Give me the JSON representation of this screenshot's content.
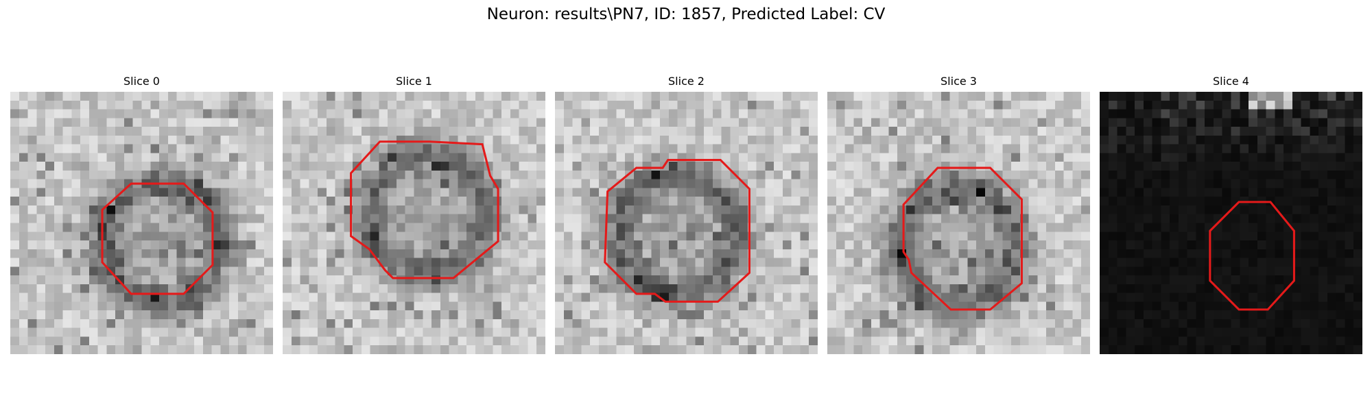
{
  "figure": {
    "title": "Neuron: results\\PN7, ID: 1857, Predicted Label: CV"
  },
  "slices": [
    {
      "title": "Slice 0",
      "tone": "light",
      "outline": [
        [
          0.46,
          0.35
        ],
        [
          0.66,
          0.35
        ],
        [
          0.77,
          0.46
        ],
        [
          0.77,
          0.66
        ],
        [
          0.66,
          0.77
        ],
        [
          0.46,
          0.77
        ],
        [
          0.35,
          0.65
        ],
        [
          0.35,
          0.45
        ]
      ]
    },
    {
      "title": "Slice 1",
      "tone": "light",
      "outline": [
        [
          0.37,
          0.19
        ],
        [
          0.56,
          0.19
        ],
        [
          0.76,
          0.2
        ],
        [
          0.79,
          0.32
        ],
        [
          0.82,
          0.37
        ],
        [
          0.82,
          0.57
        ],
        [
          0.65,
          0.71
        ],
        [
          0.42,
          0.71
        ],
        [
          0.39,
          0.68
        ],
        [
          0.33,
          0.6
        ],
        [
          0.26,
          0.55
        ],
        [
          0.26,
          0.31
        ]
      ]
    },
    {
      "title": "Slice 2",
      "tone": "light",
      "outline": [
        [
          0.2,
          0.38
        ],
        [
          0.31,
          0.29
        ],
        [
          0.41,
          0.29
        ],
        [
          0.43,
          0.26
        ],
        [
          0.63,
          0.26
        ],
        [
          0.74,
          0.37
        ],
        [
          0.74,
          0.69
        ],
        [
          0.62,
          0.8
        ],
        [
          0.42,
          0.8
        ],
        [
          0.38,
          0.77
        ],
        [
          0.31,
          0.77
        ],
        [
          0.19,
          0.65
        ]
      ]
    },
    {
      "title": "Slice 3",
      "tone": "light",
      "outline": [
        [
          0.29,
          0.43
        ],
        [
          0.42,
          0.29
        ],
        [
          0.62,
          0.29
        ],
        [
          0.74,
          0.41
        ],
        [
          0.74,
          0.73
        ],
        [
          0.62,
          0.83
        ],
        [
          0.47,
          0.83
        ],
        [
          0.32,
          0.69
        ],
        [
          0.31,
          0.64
        ],
        [
          0.29,
          0.61
        ]
      ]
    },
    {
      "title": "Slice 4",
      "tone": "dark",
      "outline": [
        [
          0.53,
          0.42
        ],
        [
          0.65,
          0.42
        ],
        [
          0.74,
          0.53
        ],
        [
          0.74,
          0.72
        ],
        [
          0.64,
          0.83
        ],
        [
          0.53,
          0.83
        ],
        [
          0.42,
          0.72
        ],
        [
          0.42,
          0.53
        ]
      ]
    }
  ]
}
